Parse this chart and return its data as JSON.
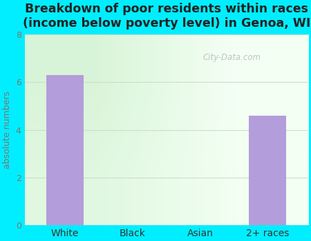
{
  "title": "Breakdown of poor residents within races\n(income below poverty level) in Genoa, WI",
  "categories": [
    "White",
    "Black",
    "Asian",
    "2+ races"
  ],
  "values": [
    6.3,
    0,
    0,
    4.6
  ],
  "bar_color": "#b39ddb",
  "ylabel": "absolute numbers",
  "ylim": [
    0,
    8
  ],
  "yticks": [
    0,
    2,
    4,
    6,
    8
  ],
  "background_outer": "#00eeff",
  "background_inner_topleft": "#d8edd8",
  "background_inner_bottomright": "#f5faf0",
  "title_fontsize": 12.5,
  "title_fontweight": "bold",
  "title_color": "#222222",
  "tick_color": "#777777",
  "ylabel_color": "#777777",
  "xtick_color": "#333333",
  "watermark": "City-Data.com",
  "grid_color": "#ccddcc",
  "grid_linewidth": 0.8
}
